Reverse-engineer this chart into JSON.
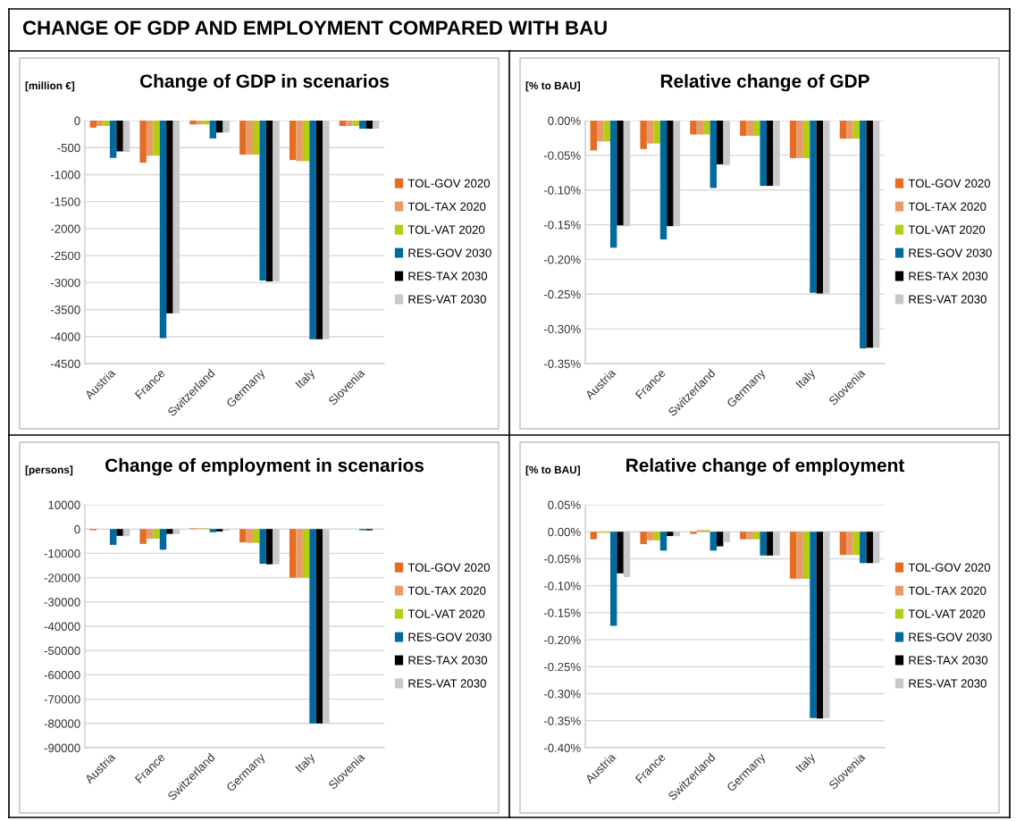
{
  "chart_data": [
    {
      "type": "bar",
      "title": "Change of GDP in scenarios",
      "ylabel": "[million €]",
      "annotations": [
        "CHANGE OF GDP AND EMPLOYMENT COMPARED WITH BAU"
      ],
      "categories": [
        "Austria",
        "France",
        "Switzerland",
        "Germany",
        "Italy",
        "Slovenia"
      ],
      "series": [
        {
          "name": "TOL-GOV 2020",
          "color": "#e46c24",
          "values": [
            -130,
            -780,
            -70,
            -630,
            -730,
            -100
          ]
        },
        {
          "name": "TOL-TAX 2020",
          "color": "#e99a67",
          "values": [
            -100,
            -650,
            -70,
            -630,
            -750,
            -100
          ]
        },
        {
          "name": "TOL-VAT 2020",
          "color": "#b4cc12",
          "values": [
            -100,
            -650,
            -70,
            -630,
            -750,
            -100
          ]
        },
        {
          "name": "RES-GOV 2030",
          "color": "#0069a0",
          "values": [
            -690,
            -4030,
            -330,
            -2960,
            -4050,
            -150
          ]
        },
        {
          "name": "RES-TAX 2030",
          "color": "#000000",
          "values": [
            -570,
            -3570,
            -220,
            -2980,
            -4050,
            -150
          ]
        },
        {
          "name": "RES-VAT 2030",
          "color": "#c8c8c8",
          "values": [
            -580,
            -3570,
            -220,
            -2980,
            -4050,
            -150
          ]
        }
      ],
      "ylim": [
        -4500,
        0
      ],
      "yticks": [
        0,
        -500,
        -1000,
        -1500,
        -2000,
        -2500,
        -3000,
        -3500,
        -4000,
        -4500
      ],
      "grid": "y",
      "legend": "right"
    },
    {
      "type": "bar",
      "title": "Relative change of GDP",
      "ylabel": "[% to BAU]",
      "categories": [
        "Austria",
        "France",
        "Switzerland",
        "Germany",
        "Italy",
        "Slovenia"
      ],
      "series": [
        {
          "name": "TOL-GOV 2020",
          "color": "#e46c24",
          "values": [
            -0.043,
            -0.041,
            -0.02,
            -0.022,
            -0.054,
            -0.026
          ]
        },
        {
          "name": "TOL-TAX 2020",
          "color": "#e99a67",
          "values": [
            -0.03,
            -0.033,
            -0.02,
            -0.022,
            -0.054,
            -0.026
          ]
        },
        {
          "name": "TOL-VAT 2020",
          "color": "#b4cc12",
          "values": [
            -0.03,
            -0.033,
            -0.02,
            -0.022,
            -0.054,
            -0.026
          ]
        },
        {
          "name": "RES-GOV 2030",
          "color": "#0069a0",
          "values": [
            -0.183,
            -0.171,
            -0.097,
            -0.094,
            -0.248,
            -0.328
          ]
        },
        {
          "name": "RES-TAX 2030",
          "color": "#000000",
          "values": [
            -0.151,
            -0.152,
            -0.063,
            -0.094,
            -0.249,
            -0.327
          ]
        },
        {
          "name": "RES-VAT 2030",
          "color": "#c8c8c8",
          "values": [
            -0.152,
            -0.152,
            -0.064,
            -0.094,
            -0.249,
            -0.327
          ]
        }
      ],
      "ylim": [
        -0.35,
        0
      ],
      "yticks": [
        {
          "value": 0,
          "label": "0.00%"
        },
        {
          "value": -0.05,
          "label": "-0.05%"
        },
        {
          "value": -0.1,
          "label": "-0.10%"
        },
        {
          "value": -0.15,
          "label": "-0.15%"
        },
        {
          "value": -0.2,
          "label": "-0.20%"
        },
        {
          "value": -0.25,
          "label": "-0.25%"
        },
        {
          "value": -0.3,
          "label": "-0.30%"
        },
        {
          "value": -0.35,
          "label": "-0.35%"
        }
      ],
      "grid": "y",
      "legend": "right"
    },
    {
      "type": "bar",
      "title": "Change of employment in scenarios",
      "ylabel": "[persons]",
      "categories": [
        "Austria",
        "France",
        "Switzerland",
        "Germany",
        "Italy",
        "Slovenia"
      ],
      "series": [
        {
          "name": "TOL-GOV 2020",
          "color": "#e46c24",
          "values": [
            -500,
            -6100,
            300,
            -5500,
            -20000,
            null
          ]
        },
        {
          "name": "TOL-TAX 2020",
          "color": "#e99a67",
          "values": [
            0,
            -4000,
            300,
            -5700,
            -20000,
            null
          ]
        },
        {
          "name": "TOL-VAT 2020",
          "color": "#b4cc12",
          "values": [
            0,
            -4000,
            300,
            -5700,
            -20000,
            null
          ]
        },
        {
          "name": "RES-GOV 2030",
          "color": "#0069a0",
          "values": [
            -6500,
            -8500,
            -1300,
            -14300,
            -80000,
            -500
          ]
        },
        {
          "name": "RES-TAX 2030",
          "color": "#000000",
          "values": [
            -2800,
            -2000,
            -1000,
            -14500,
            -80000,
            -500
          ]
        },
        {
          "name": "RES-VAT 2030",
          "color": "#c8c8c8",
          "values": [
            -3000,
            -2000,
            -700,
            -14500,
            -80000,
            null
          ]
        }
      ],
      "ylim": [
        -90000,
        10000
      ],
      "yticks": [
        10000,
        0,
        -10000,
        -20000,
        -30000,
        -40000,
        -50000,
        -60000,
        -70000,
        -80000,
        -90000
      ],
      "grid": "y",
      "legend": "right"
    },
    {
      "type": "bar",
      "title": "Relative change of employment",
      "ylabel": "[% to BAU]",
      "categories": [
        "Austria",
        "France",
        "Switzerland",
        "Germany",
        "Italy",
        "Slovenia"
      ],
      "series": [
        {
          "name": "TOL-GOV 2020",
          "color": "#e46c24",
          "values": [
            -0.014,
            -0.023,
            -0.004,
            -0.014,
            -0.087,
            -0.043
          ]
        },
        {
          "name": "TOL-TAX 2020",
          "color": "#e99a67",
          "values": [
            -0.002,
            -0.016,
            0.003,
            -0.014,
            -0.087,
            -0.043
          ]
        },
        {
          "name": "TOL-VAT 2020",
          "color": "#b4cc12",
          "values": [
            -0.002,
            -0.016,
            0.003,
            -0.014,
            -0.087,
            -0.043
          ]
        },
        {
          "name": "RES-GOV 2030",
          "color": "#0069a0",
          "values": [
            -0.174,
            -0.035,
            -0.035,
            -0.044,
            -0.345,
            -0.058
          ]
        },
        {
          "name": "RES-TAX 2030",
          "color": "#000000",
          "values": [
            -0.077,
            -0.008,
            -0.027,
            -0.044,
            -0.346,
            -0.058
          ]
        },
        {
          "name": "RES-VAT 2030",
          "color": "#c8c8c8",
          "values": [
            -0.084,
            -0.008,
            -0.019,
            -0.044,
            -0.345,
            -0.058
          ]
        }
      ],
      "ylim": [
        -0.4,
        0.05
      ],
      "yticks": [
        {
          "value": 0.05,
          "label": "0.05%"
        },
        {
          "value": 0,
          "label": "0.00%"
        },
        {
          "value": -0.05,
          "label": "-0.05%"
        },
        {
          "value": -0.1,
          "label": "-0.10%"
        },
        {
          "value": -0.15,
          "label": "-0.15%"
        },
        {
          "value": -0.2,
          "label": "-0.20%"
        },
        {
          "value": -0.25,
          "label": "-0.25%"
        },
        {
          "value": -0.3,
          "label": "-0.30%"
        },
        {
          "value": -0.35,
          "label": "-0.35%"
        },
        {
          "value": -0.4,
          "label": "-0.40%"
        }
      ],
      "grid": "y",
      "legend": "right"
    }
  ]
}
